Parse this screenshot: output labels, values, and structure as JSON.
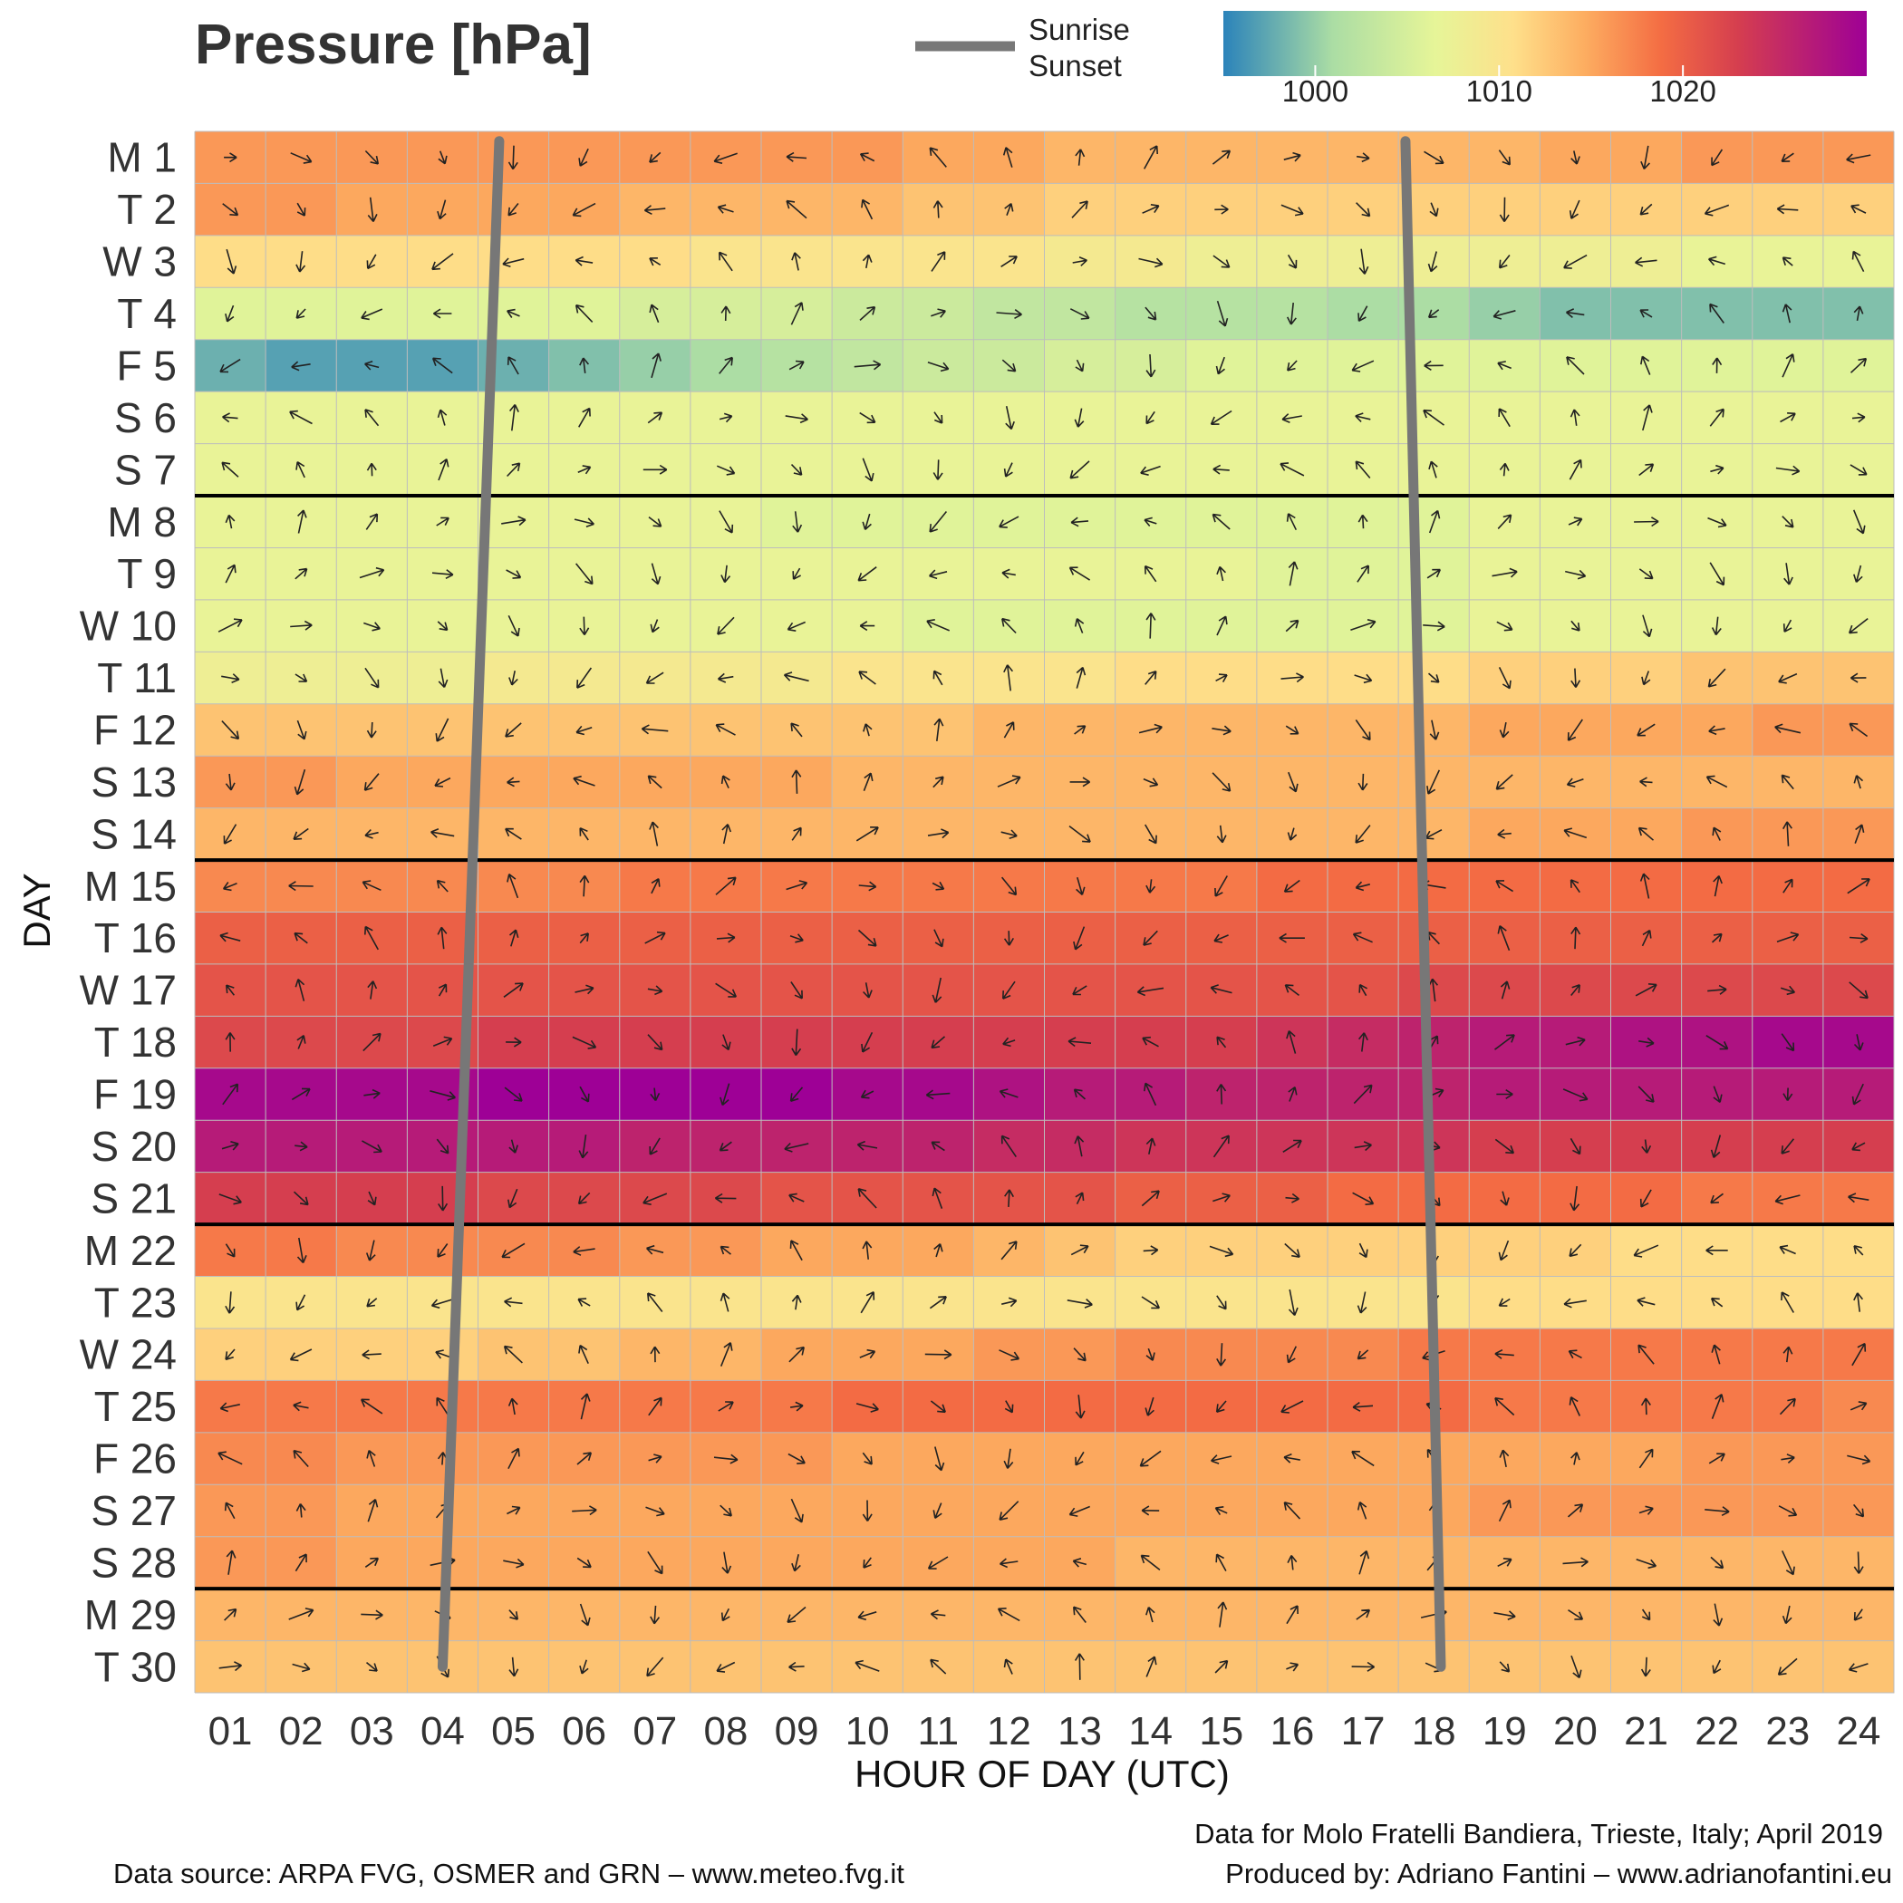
{
  "title": "Pressure [hPa]",
  "legend": {
    "line_label_1": "Sunrise",
    "line_label_2": "Sunset",
    "line_color": "#777777"
  },
  "colorbar": {
    "ticks": [
      "1000",
      "1010",
      "1020"
    ],
    "range": [
      995,
      1030
    ]
  },
  "axes": {
    "xlabel": "HOUR OF DAY (UTC)",
    "ylabel": "DAY"
  },
  "footer": {
    "source": "Data source: ARPA FVG, OSMER and GRN – www.meteo.fvg.it",
    "location": "Data for Molo Fratelli Bandiera, Trieste, Italy; April 2019",
    "producer": "Produced by: Adriano Fantini  – www.adrianofantini.eu"
  },
  "chart_data": {
    "type": "heatmap",
    "title": "Pressure [hPa]",
    "xlabel": "HOUR OF DAY (UTC)",
    "ylabel": "DAY",
    "x_categories": [
      "01",
      "02",
      "03",
      "04",
      "05",
      "06",
      "07",
      "08",
      "09",
      "10",
      "11",
      "12",
      "13",
      "14",
      "15",
      "16",
      "17",
      "18",
      "19",
      "20",
      "21",
      "22",
      "23",
      "24"
    ],
    "y_categories": [
      "M 1",
      "T 2",
      "W 3",
      "T 4",
      "F 5",
      "S 6",
      "S 7",
      "M 8",
      "T 9",
      "W 10",
      "T 11",
      "F 12",
      "S 13",
      "S 14",
      "M 15",
      "T 16",
      "W 17",
      "T 18",
      "F 19",
      "S 20",
      "S 21",
      "M 22",
      "T 23",
      "W 24",
      "T 25",
      "F 26",
      "S 27",
      "S 28",
      "M 29",
      "T 30"
    ],
    "week_separators_after_rows": [
      "S 7",
      "S 14",
      "S 21",
      "S 28"
    ],
    "colorbar_range": [
      995,
      1030
    ],
    "colorbar_ticks": [
      1000,
      1010,
      1020
    ],
    "colormap": "Spectral_r",
    "values": [
      [
        1016,
        1016,
        1016,
        1016,
        1016,
        1016,
        1016,
        1016,
        1016,
        1016,
        1015,
        1015,
        1014,
        1014,
        1014,
        1014,
        1014,
        1014,
        1014,
        1015,
        1015,
        1016,
        1016,
        1016
      ],
      [
        1016,
        1016,
        1015,
        1015,
        1015,
        1015,
        1014,
        1014,
        1014,
        1014,
        1013,
        1013,
        1012,
        1012,
        1012,
        1012,
        1012,
        1012,
        1012,
        1012,
        1012,
        1012,
        1012,
        1012
      ],
      [
        1011,
        1011,
        1011,
        1011,
        1011,
        1011,
        1011,
        1010,
        1010,
        1010,
        1010,
        1010,
        1009,
        1009,
        1008,
        1008,
        1008,
        1008,
        1008,
        1008,
        1008,
        1007,
        1007,
        1007
      ],
      [
        1006,
        1006,
        1006,
        1006,
        1006,
        1006,
        1005,
        1005,
        1005,
        1004,
        1004,
        1003,
        1003,
        1002,
        1002,
        1002,
        1001,
        1001,
        1000,
        999,
        999,
        999,
        999,
        999
      ],
      [
        998,
        997,
        997,
        997,
        998,
        999,
        1000,
        1001,
        1002,
        1003,
        1004,
        1004,
        1005,
        1005,
        1006,
        1006,
        1006,
        1006,
        1006,
        1006,
        1006,
        1006,
        1006,
        1006
      ],
      [
        1007,
        1007,
        1007,
        1007,
        1007,
        1007,
        1007,
        1007,
        1007,
        1007,
        1007,
        1007,
        1007,
        1007,
        1007,
        1007,
        1007,
        1007,
        1007,
        1007,
        1007,
        1007,
        1007,
        1007
      ],
      [
        1007,
        1007,
        1007,
        1007,
        1007,
        1007,
        1007,
        1007,
        1007,
        1007,
        1007,
        1007,
        1007,
        1007,
        1007,
        1007,
        1007,
        1007,
        1007,
        1007,
        1007,
        1007,
        1007,
        1007
      ],
      [
        1007,
        1007,
        1007,
        1007,
        1007,
        1007,
        1007,
        1007,
        1006,
        1006,
        1006,
        1006,
        1006,
        1006,
        1006,
        1006,
        1006,
        1006,
        1007,
        1007,
        1007,
        1007,
        1007,
        1007
      ],
      [
        1007,
        1007,
        1007,
        1007,
        1007,
        1007,
        1007,
        1007,
        1007,
        1007,
        1007,
        1007,
        1007,
        1007,
        1007,
        1006,
        1006,
        1006,
        1007,
        1007,
        1007,
        1007,
        1007,
        1007
      ],
      [
        1007,
        1007,
        1007,
        1007,
        1007,
        1007,
        1007,
        1007,
        1007,
        1007,
        1006,
        1006,
        1006,
        1006,
        1006,
        1006,
        1006,
        1006,
        1007,
        1007,
        1007,
        1007,
        1007,
        1007
      ],
      [
        1008,
        1008,
        1008,
        1008,
        1009,
        1009,
        1009,
        1009,
        1009,
        1010,
        1010,
        1010,
        1010,
        1011,
        1011,
        1011,
        1011,
        1011,
        1012,
        1012,
        1012,
        1013,
        1013,
        1013
      ],
      [
        1013,
        1013,
        1013,
        1013,
        1013,
        1013,
        1013,
        1013,
        1013,
        1013,
        1013,
        1014,
        1014,
        1014,
        1014,
        1014,
        1014,
        1014,
        1015,
        1015,
        1015,
        1015,
        1016,
        1016
      ],
      [
        1016,
        1016,
        1015,
        1015,
        1015,
        1015,
        1015,
        1015,
        1015,
        1014,
        1014,
        1014,
        1014,
        1014,
        1014,
        1014,
        1014,
        1014,
        1014,
        1014,
        1014,
        1014,
        1014,
        1014
      ],
      [
        1014,
        1014,
        1014,
        1014,
        1014,
        1014,
        1014,
        1014,
        1014,
        1014,
        1014,
        1014,
        1014,
        1014,
        1014,
        1014,
        1014,
        1014,
        1015,
        1015,
        1015,
        1016,
        1016,
        1016
      ],
      [
        1017,
        1017,
        1017,
        1017,
        1017,
        1017,
        1018,
        1018,
        1018,
        1018,
        1018,
        1018,
        1018,
        1018,
        1018,
        1019,
        1019,
        1019,
        1019,
        1019,
        1019,
        1019,
        1019,
        1019
      ],
      [
        1020,
        1020,
        1020,
        1020,
        1020,
        1020,
        1020,
        1020,
        1020,
        1020,
        1020,
        1020,
        1020,
        1020,
        1020,
        1020,
        1020,
        1020,
        1020,
        1020,
        1020,
        1020,
        1020,
        1020
      ],
      [
        1021,
        1021,
        1021,
        1021,
        1021,
        1021,
        1021,
        1021,
        1021,
        1021,
        1021,
        1021,
        1021,
        1021,
        1021,
        1021,
        1021,
        1022,
        1022,
        1022,
        1022,
        1022,
        1022,
        1022
      ],
      [
        1022,
        1022,
        1022,
        1022,
        1023,
        1023,
        1023,
        1023,
        1023,
        1023,
        1023,
        1023,
        1023,
        1023,
        1023,
        1024,
        1025,
        1026,
        1027,
        1027,
        1028,
        1028,
        1029,
        1029
      ],
      [
        1029,
        1029,
        1029,
        1029,
        1030,
        1030,
        1030,
        1030,
        1030,
        1029,
        1029,
        1028,
        1027,
        1027,
        1026,
        1026,
        1026,
        1026,
        1027,
        1027,
        1027,
        1027,
        1027,
        1027
      ],
      [
        1027,
        1027,
        1027,
        1027,
        1027,
        1027,
        1026,
        1026,
        1026,
        1026,
        1026,
        1025,
        1025,
        1024,
        1024,
        1024,
        1024,
        1024,
        1023,
        1023,
        1023,
        1023,
        1023,
        1023
      ],
      [
        1023,
        1023,
        1023,
        1023,
        1022,
        1022,
        1022,
        1022,
        1021,
        1021,
        1021,
        1021,
        1021,
        1020,
        1020,
        1020,
        1019,
        1019,
        1019,
        1019,
        1019,
        1018,
        1018,
        1018
      ],
      [
        1018,
        1018,
        1017,
        1017,
        1017,
        1017,
        1016,
        1016,
        1015,
        1015,
        1015,
        1014,
        1013,
        1012,
        1012,
        1012,
        1012,
        1012,
        1012,
        1012,
        1011,
        1011,
        1011,
        1011
      ],
      [
        1010,
        1010,
        1010,
        1010,
        1010,
        1010,
        1010,
        1010,
        1010,
        1010,
        1010,
        1010,
        1010,
        1010,
        1010,
        1010,
        1010,
        1010,
        1011,
        1011,
        1011,
        1011,
        1011,
        1011
      ],
      [
        1012,
        1012,
        1012,
        1012,
        1013,
        1013,
        1014,
        1014,
        1015,
        1015,
        1015,
        1016,
        1016,
        1017,
        1017,
        1017,
        1017,
        1018,
        1018,
        1018,
        1018,
        1018,
        1018,
        1018
      ],
      [
        1018,
        1018,
        1018,
        1018,
        1018,
        1018,
        1018,
        1018,
        1018,
        1019,
        1019,
        1019,
        1019,
        1019,
        1019,
        1019,
        1019,
        1019,
        1018,
        1018,
        1018,
        1018,
        1018,
        1017
      ],
      [
        1017,
        1017,
        1016,
        1016,
        1016,
        1016,
        1016,
        1016,
        1016,
        1015,
        1015,
        1015,
        1015,
        1015,
        1015,
        1015,
        1015,
        1015,
        1015,
        1015,
        1015,
        1016,
        1016,
        1016
      ],
      [
        1016,
        1016,
        1015,
        1015,
        1015,
        1015,
        1015,
        1015,
        1015,
        1015,
        1015,
        1015,
        1015,
        1015,
        1015,
        1015,
        1015,
        1015,
        1016,
        1016,
        1016,
        1016,
        1016,
        1016
      ],
      [
        1016,
        1016,
        1015,
        1015,
        1015,
        1015,
        1015,
        1015,
        1015,
        1015,
        1015,
        1015,
        1015,
        1014,
        1014,
        1014,
        1014,
        1014,
        1014,
        1014,
        1014,
        1014,
        1014,
        1014
      ],
      [
        1014,
        1014,
        1014,
        1014,
        1014,
        1014,
        1014,
        1014,
        1014,
        1014,
        1014,
        1014,
        1014,
        1014,
        1014,
        1014,
        1014,
        1014,
        1014,
        1014,
        1014,
        1014,
        1014,
        1014
      ],
      [
        1013,
        1013,
        1013,
        1013,
        1013,
        1013,
        1013,
        1013,
        1013,
        1013,
        1013,
        1013,
        1013,
        1013,
        1013,
        1013,
        1013,
        1013,
        1013,
        1013,
        1013,
        1013,
        1013,
        1013
      ]
    ],
    "sunrise_hour_utc": {
      "first_day": 4.8,
      "last_day": 4.0
    },
    "sunset_hour_utc": {
      "first_day": 17.6,
      "last_day": 18.1
    }
  }
}
